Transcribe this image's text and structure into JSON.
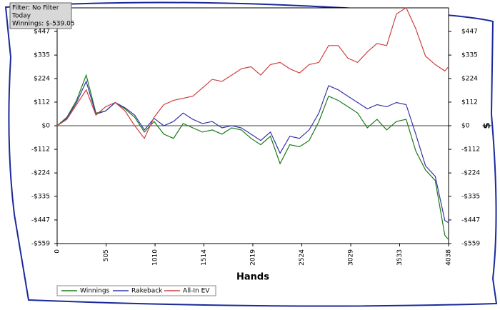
{
  "chart_data": {
    "type": "line",
    "info": [
      "Filter: No Filter",
      "Today",
      "Winnings: $-539.05"
    ],
    "x_label": "Hands",
    "y_label": "$",
    "x": [
      0,
      100,
      200,
      300,
      400,
      500,
      600,
      700,
      800,
      900,
      1000,
      1100,
      1200,
      1300,
      1400,
      1500,
      1600,
      1700,
      1800,
      1900,
      2000,
      2100,
      2200,
      2300,
      2400,
      2500,
      2600,
      2700,
      2800,
      2900,
      3000,
      3100,
      3200,
      3300,
      3400,
      3500,
      3600,
      3700,
      3800,
      3900,
      4000,
      4038
    ],
    "series": [
      {
        "name": "Winnings",
        "color": "#1a7a1a",
        "values": [
          0,
          40,
          120,
          240,
          60,
          70,
          110,
          80,
          40,
          -30,
          20,
          -40,
          -60,
          10,
          -10,
          -30,
          -20,
          -40,
          -10,
          -20,
          -60,
          -90,
          -50,
          -180,
          -90,
          -100,
          -70,
          20,
          140,
          120,
          90,
          60,
          -10,
          30,
          -20,
          20,
          30,
          -120,
          -210,
          -260,
          -520,
          -540
        ]
      },
      {
        "name": "Rakeback",
        "color": "#3636a8",
        "values": [
          0,
          35,
          110,
          210,
          55,
          70,
          110,
          85,
          50,
          -20,
          35,
          0,
          20,
          60,
          30,
          10,
          20,
          -10,
          0,
          -10,
          -40,
          -70,
          -30,
          -130,
          -50,
          -60,
          -20,
          60,
          190,
          170,
          140,
          110,
          80,
          100,
          90,
          110,
          100,
          -40,
          -190,
          -240,
          -450,
          -460
        ]
      },
      {
        "name": "All-In EV",
        "color": "#d04040",
        "values": [
          0,
          30,
          100,
          170,
          50,
          90,
          110,
          70,
          0,
          -60,
          40,
          100,
          120,
          130,
          140,
          180,
          220,
          210,
          240,
          270,
          280,
          240,
          290,
          300,
          270,
          250,
          290,
          300,
          380,
          380,
          320,
          300,
          350,
          390,
          380,
          530,
          560,
          460,
          330,
          290,
          260,
          280
        ]
      }
    ],
    "xlim": [
      0,
      4038
    ],
    "xticks": [
      0,
      505,
      1010,
      1514,
      2019,
      2524,
      3029,
      3533,
      4038
    ],
    "ylim": [
      -559,
      559
    ],
    "yticks": [
      {
        "value": -559,
        "label": "-$559"
      },
      {
        "value": -447,
        "label": "-$447"
      },
      {
        "value": -335,
        "label": "-$335"
      },
      {
        "value": -224,
        "label": "-$224"
      },
      {
        "value": -112,
        "label": "-$112"
      },
      {
        "value": 0,
        "label": "$0"
      },
      {
        "value": 112,
        "label": "$112"
      },
      {
        "value": 224,
        "label": "$224"
      },
      {
        "value": 335,
        "label": "$335"
      },
      {
        "value": 447,
        "label": "$447"
      }
    ]
  }
}
